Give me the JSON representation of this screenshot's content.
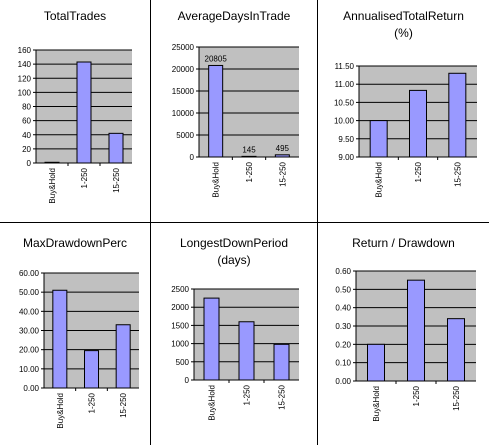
{
  "chart_data": [
    {
      "type": "bar",
      "title": "TotalTrades",
      "subtitle": "",
      "categories": [
        "Buy&Hold",
        "1-250",
        "15-250"
      ],
      "values": [
        1,
        143,
        42
      ],
      "ylim": [
        0,
        160
      ],
      "yticks": [
        "0",
        "20",
        "40",
        "60",
        "80",
        "100",
        "120",
        "140",
        "160"
      ],
      "data_labels": [],
      "grid": true
    },
    {
      "type": "bar",
      "title": "AverageDaysInTrade",
      "subtitle": "",
      "categories": [
        "Buy&Hold",
        "1-250",
        "15-250"
      ],
      "values": [
        20805,
        145,
        495
      ],
      "ylim": [
        0,
        25000
      ],
      "yticks": [
        "0",
        "5000",
        "10000",
        "15000",
        "20000",
        "25000"
      ],
      "data_labels": [
        "20805",
        "145",
        "495"
      ],
      "grid": true
    },
    {
      "type": "bar",
      "title": "AnnualisedTotalReturn",
      "subtitle": "(%)",
      "categories": [
        "Buy&Hold",
        "1-250",
        "15-250"
      ],
      "values": [
        10.0,
        10.83,
        11.3
      ],
      "ylim": [
        9.0,
        11.5
      ],
      "yticks": [
        "9.00",
        "9.50",
        "10.00",
        "10.50",
        "11.00",
        "11.50"
      ],
      "data_labels": [],
      "grid": true
    },
    {
      "type": "bar",
      "title": "MaxDrawdownPerc",
      "subtitle": "",
      "categories": [
        "Buy&Hold",
        "1-250",
        "15-250"
      ],
      "values": [
        51,
        19.5,
        33
      ],
      "ylim": [
        0,
        60
      ],
      "yticks": [
        "0.00",
        "10.00",
        "20.00",
        "30.00",
        "40.00",
        "50.00",
        "60.00"
      ],
      "data_labels": [],
      "grid": true
    },
    {
      "type": "bar",
      "title": "LongestDownPeriod",
      "subtitle": "(days)",
      "categories": [
        "Buy&Hold",
        "1-250",
        "15-250"
      ],
      "values": [
        2250,
        1600,
        980
      ],
      "ylim": [
        0,
        2500
      ],
      "yticks": [
        "0",
        "500",
        "1000",
        "1500",
        "2000",
        "2500"
      ],
      "data_labels": [],
      "grid": true
    },
    {
      "type": "bar",
      "title": "Return / Drawdown",
      "subtitle": "",
      "categories": [
        "Buy&Hold",
        "1-250",
        "15-250"
      ],
      "values": [
        0.2,
        0.55,
        0.34
      ],
      "ylim": [
        0,
        0.6
      ],
      "yticks": [
        "0.00",
        "0.10",
        "0.20",
        "0.30",
        "0.40",
        "0.50",
        "0.60"
      ],
      "data_labels": [],
      "grid": true
    }
  ],
  "colors": {
    "plot_bg": "#c0c0c0",
    "bar_fill": "#9999ff",
    "bar_stroke": "#000000",
    "gridline": "#000000",
    "divider": "#000000"
  }
}
